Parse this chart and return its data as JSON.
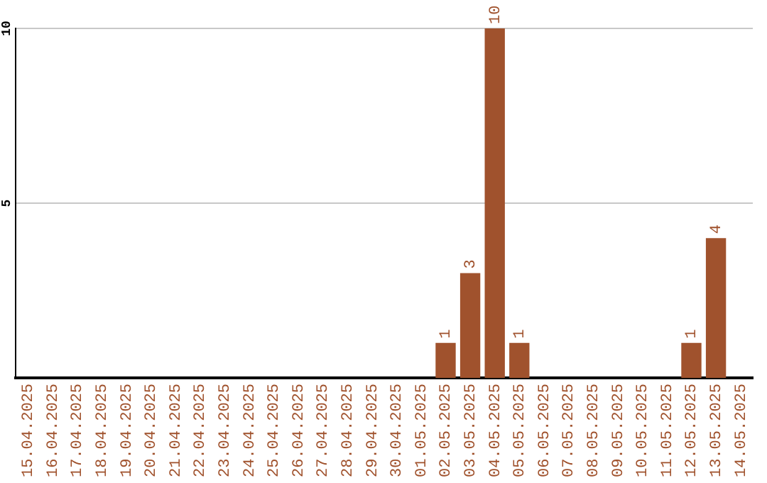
{
  "chart_data": {
    "type": "bar",
    "categories": [
      "15.04.2025",
      "16.04.2025",
      "17.04.2025",
      "18.04.2025",
      "19.04.2025",
      "20.04.2025",
      "21.04.2025",
      "22.04.2025",
      "23.04.2025",
      "24.04.2025",
      "25.04.2025",
      "26.04.2025",
      "27.04.2025",
      "28.04.2025",
      "29.04.2025",
      "30.04.2025",
      "01.05.2025",
      "02.05.2025",
      "03.05.2025",
      "04.05.2025",
      "05.05.2025",
      "06.05.2025",
      "07.05.2025",
      "08.05.2025",
      "09.05.2025",
      "10.05.2025",
      "11.05.2025",
      "12.05.2025",
      "13.05.2025",
      "14.05.2025"
    ],
    "values": [
      0,
      0,
      0,
      0,
      0,
      0,
      0,
      0,
      0,
      0,
      0,
      0,
      0,
      0,
      0,
      0,
      0,
      1,
      3,
      10,
      1,
      0,
      0,
      0,
      0,
      0,
      0,
      1,
      4,
      0
    ],
    "value_labels": [
      null,
      null,
      null,
      null,
      null,
      null,
      null,
      null,
      null,
      null,
      null,
      null,
      null,
      null,
      null,
      null,
      null,
      "1",
      "3",
      "10",
      "1",
      null,
      null,
      null,
      null,
      null,
      null,
      "1",
      "4",
      null
    ],
    "color": "#a0522d",
    "ylim": [
      0,
      10
    ],
    "yticks": [
      5,
      10
    ],
    "grid": "y",
    "legend": false
  }
}
